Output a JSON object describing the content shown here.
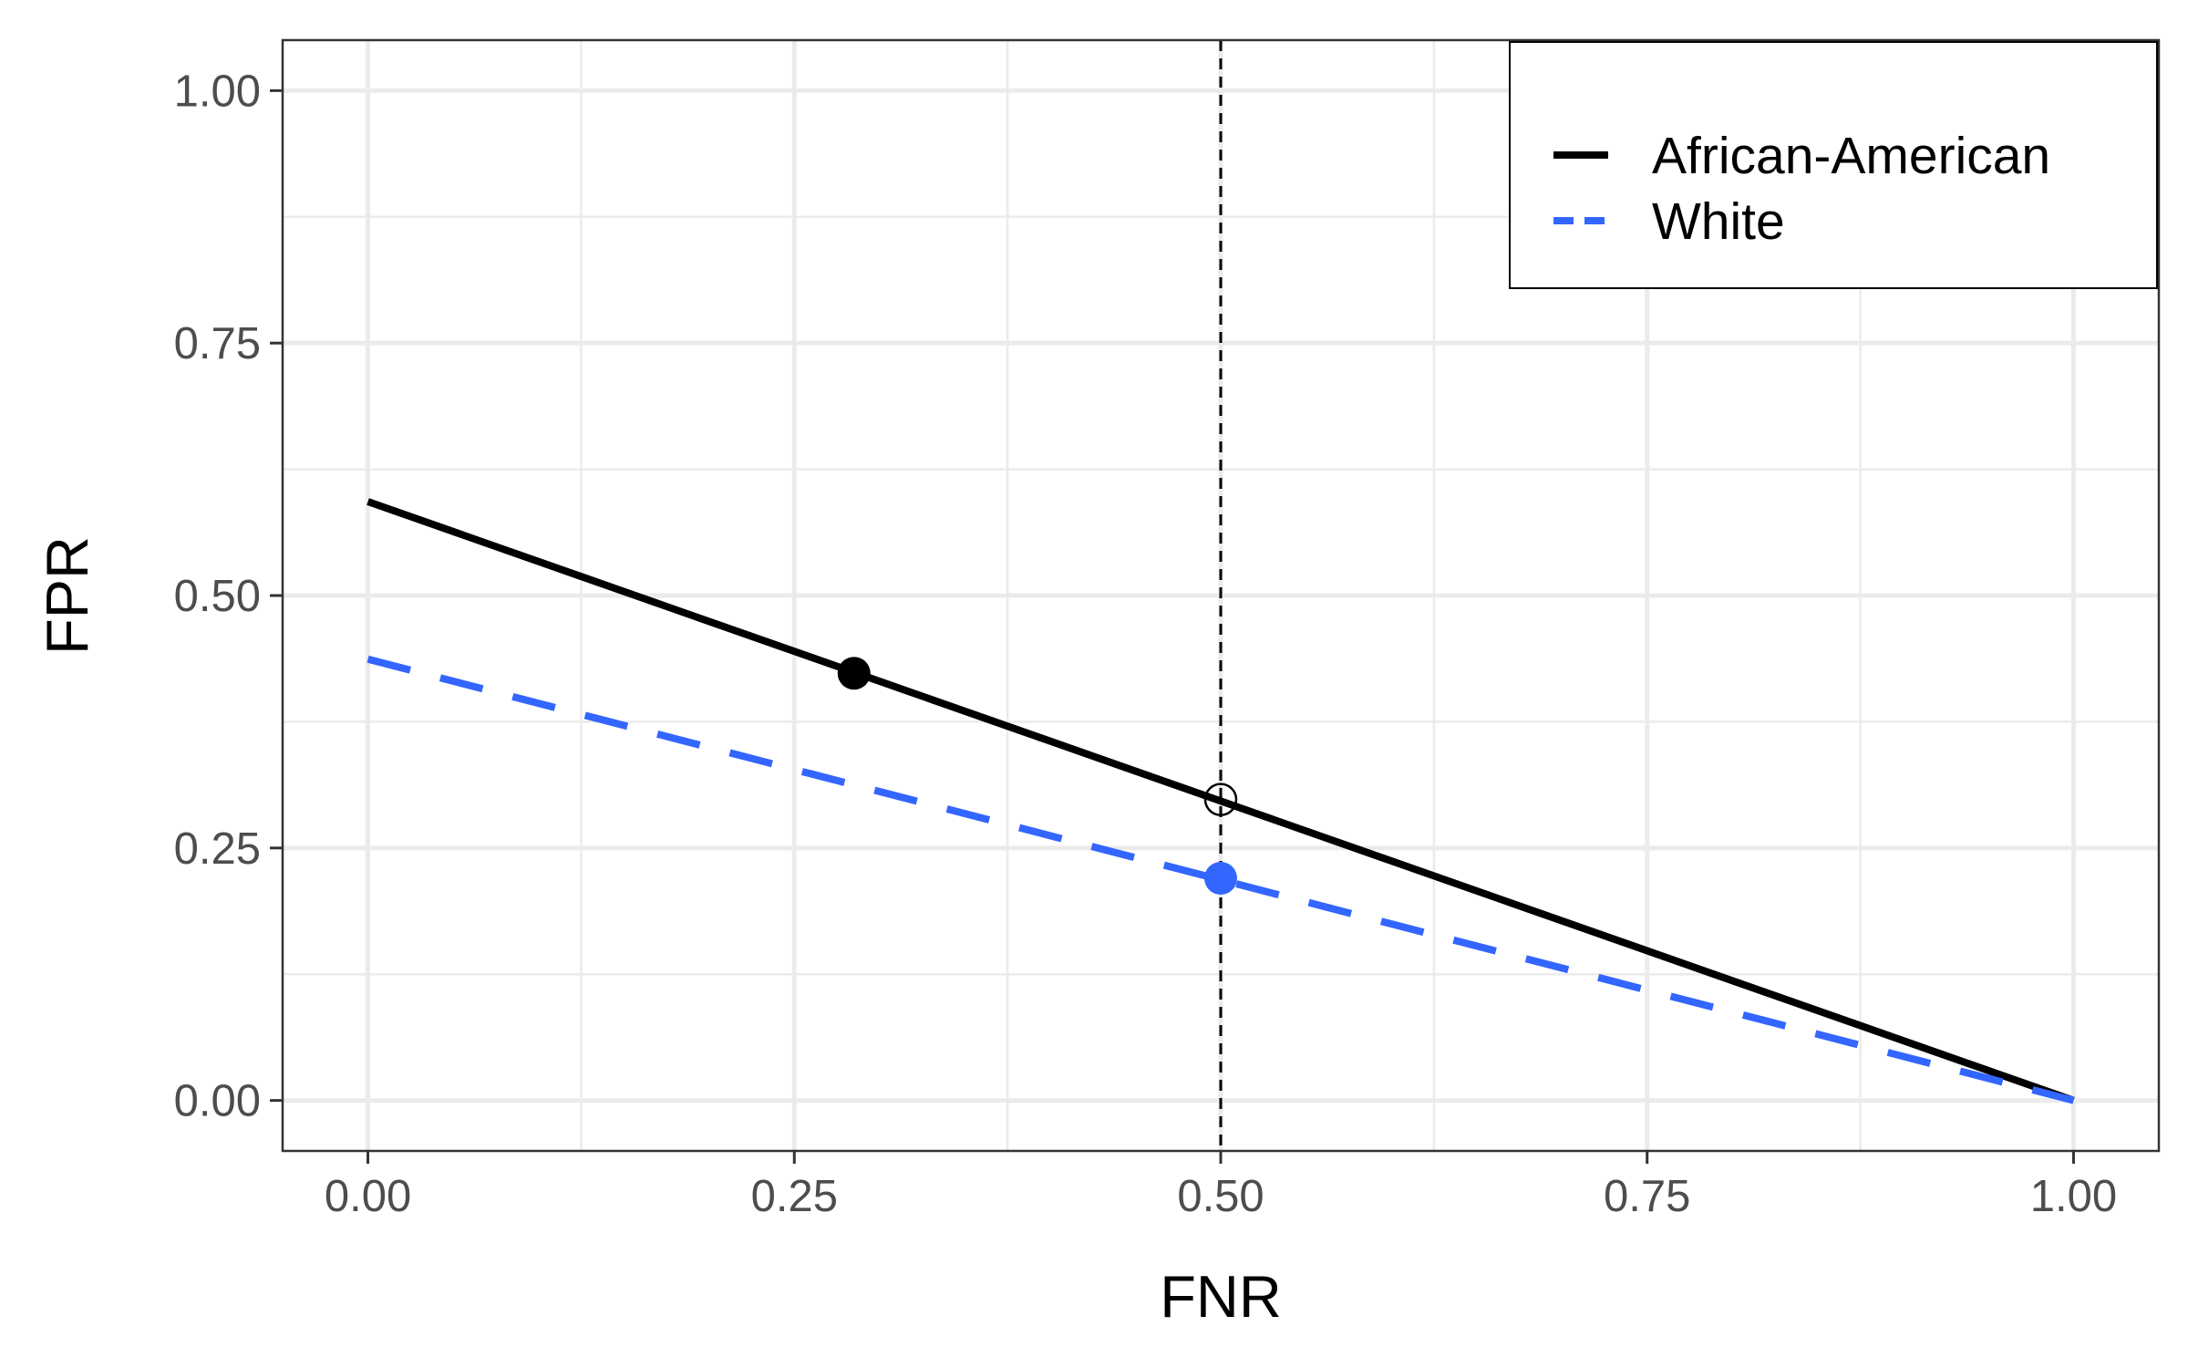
{
  "chart_data": {
    "type": "line",
    "title": "",
    "xlabel": "FNR",
    "ylabel": "FPR",
    "xlim": [
      -0.05,
      1.05
    ],
    "ylim": [
      -0.05,
      1.05
    ],
    "x_ticks": [
      0,
      0.25,
      0.5,
      0.75,
      1
    ],
    "y_ticks": [
      0,
      0.25,
      0.5,
      0.75,
      1
    ],
    "x_tick_labels": [
      "0.00",
      "0.25",
      "0.50",
      "0.75",
      "1.00"
    ],
    "y_tick_labels": [
      "0.00",
      "0.25",
      "0.50",
      "0.75",
      "1.00"
    ],
    "grid": true,
    "legend_position": "top-right",
    "series": [
      {
        "name": "African-American",
        "color": "#000000",
        "line_style": "solid",
        "x": [
          0,
          1
        ],
        "y": [
          0.593,
          0
        ]
      },
      {
        "name": "White",
        "color": "#3366ff",
        "line_style": "dashed",
        "x": [
          0,
          1
        ],
        "y": [
          0.437,
          0
        ]
      }
    ],
    "vertical_line": {
      "x": 0.5,
      "color": "#000000",
      "line_style": "dashed"
    },
    "points": [
      {
        "x": 0.285,
        "y": 0.423,
        "color": "#000000",
        "filled": true
      },
      {
        "x": 0.5,
        "y": 0.22,
        "color": "#3366ff",
        "filled": true
      },
      {
        "x": 0.5,
        "y": 0.298,
        "color": "#000000",
        "filled": false
      }
    ]
  }
}
